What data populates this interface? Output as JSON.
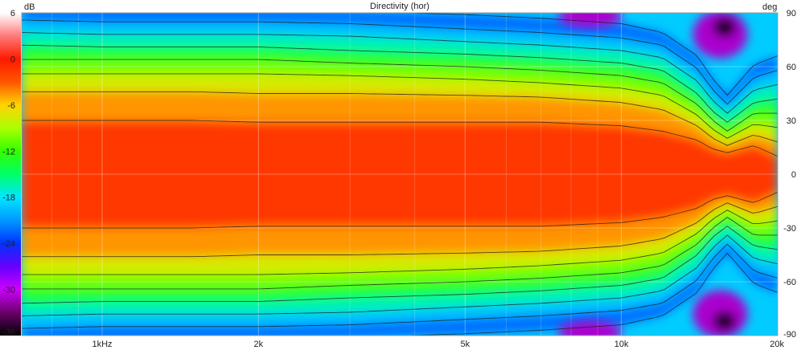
{
  "chart_data": {
    "type": "heatmap",
    "title": "Directivity (hor)",
    "colorbar": {
      "unit": "dB",
      "ticks": [
        6,
        0,
        -6,
        -12,
        -18,
        -24,
        -30,
        -36
      ],
      "range": [
        -36,
        6
      ],
      "stops": [
        {
          "v": 6,
          "color": "#ffffff"
        },
        {
          "v": 3,
          "color": "#ff7a7a"
        },
        {
          "v": 0,
          "color": "#ff1a00"
        },
        {
          "v": -3,
          "color": "#ff5500"
        },
        {
          "v": -6,
          "color": "#ffd400"
        },
        {
          "v": -9,
          "color": "#aaff00"
        },
        {
          "v": -12,
          "color": "#33ff00"
        },
        {
          "v": -15,
          "color": "#00ff66"
        },
        {
          "v": -18,
          "color": "#00e6ff"
        },
        {
          "v": -21,
          "color": "#0099ff"
        },
        {
          "v": -24,
          "color": "#0033ff"
        },
        {
          "v": -27,
          "color": "#6600ff"
        },
        {
          "v": -30,
          "color": "#cc00ff"
        },
        {
          "v": -33,
          "color": "#6a006a"
        },
        {
          "v": -36,
          "color": "#000000"
        }
      ]
    },
    "x_axis": {
      "scale": "log",
      "range": [
        700,
        20000
      ],
      "ticks": [
        {
          "value": 1000,
          "label": "1kHz"
        },
        {
          "value": 2000,
          "label": "2k"
        },
        {
          "value": 5000,
          "label": "5k"
        },
        {
          "value": 10000,
          "label": "10k"
        },
        {
          "value": 20000,
          "label": "20k"
        }
      ],
      "minor_ticks": [
        700,
        800,
        900,
        3000,
        4000,
        6000,
        7000,
        8000,
        9000
      ]
    },
    "y_axis": {
      "unit": "deg",
      "range": [
        -90,
        90
      ],
      "ticks": [
        90,
        60,
        30,
        0,
        -30,
        -60,
        -90
      ]
    },
    "contours": {
      "levels_db": [
        -3,
        -6,
        -9,
        -12,
        -15,
        -18,
        -21,
        -24
      ],
      "description_freq_hz": [
        700,
        1000,
        1500,
        2000,
        3000,
        5000,
        7000,
        10000,
        12000,
        14000,
        15000,
        16000,
        18000,
        20000
      ],
      "half_angles_deg": [
        [
          30,
          30,
          30,
          29,
          29,
          29,
          29,
          27,
          24,
          19,
          14,
          12,
          16,
          10
        ],
        [
          46,
          46,
          46,
          45,
          45,
          44,
          43,
          40,
          36,
          27,
          20,
          16,
          22,
          18
        ],
        [
          56,
          56,
          56,
          56,
          55,
          53,
          51,
          48,
          44,
          33,
          25,
          20,
          28,
          26
        ],
        [
          64,
          64,
          64,
          64,
          62,
          60,
          58,
          55,
          51,
          39,
          30,
          24,
          34,
          34
        ],
        [
          72,
          71,
          71,
          71,
          69,
          67,
          65,
          62,
          58,
          45,
          35,
          29,
          40,
          42
        ],
        [
          79,
          78,
          78,
          78,
          77,
          74,
          72,
          69,
          65,
          52,
          41,
          34,
          47,
          50
        ],
        [
          86,
          85,
          85,
          85,
          84,
          81,
          79,
          76,
          72,
          59,
          47,
          39,
          54,
          58
        ],
        [
          92,
          92,
          92,
          92,
          91,
          89,
          87,
          84,
          79,
          66,
          53,
          44,
          61,
          66
        ]
      ]
    }
  }
}
